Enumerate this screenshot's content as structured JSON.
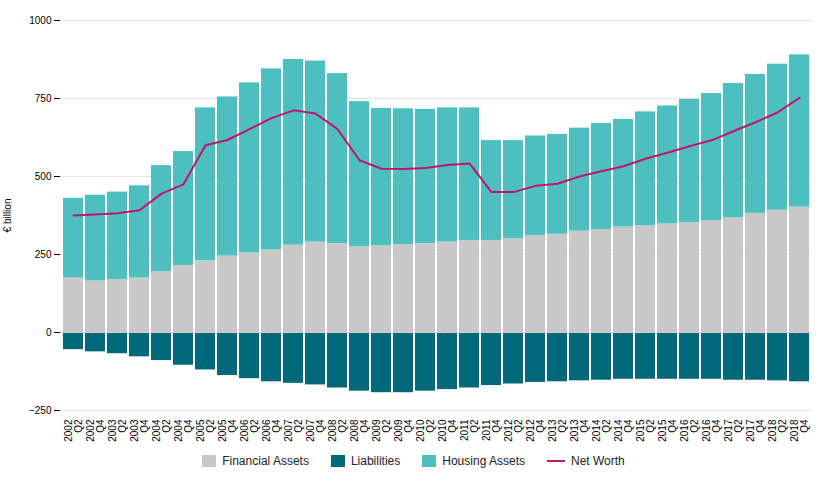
{
  "chart_data": {
    "type": "bar",
    "stacked": true,
    "grid": true,
    "legend": "bottom",
    "ylabel": "€ billion",
    "ylim": [
      -250,
      1000
    ],
    "yticks": [
      -250,
      0,
      250,
      500,
      750,
      1000
    ],
    "categories": [
      "2002\nQ2",
      "2002\nQ4",
      "2003\nQ2",
      "2003\nQ4",
      "2004\nQ2",
      "2004\nQ4",
      "2005\nQ2",
      "2005\nQ4",
      "2006\nQ2",
      "2006\nQ4",
      "2007\nQ2",
      "2007\nQ4",
      "2008\nQ2",
      "2008\nQ4",
      "2009\nQ2",
      "2009\nQ4",
      "2010\nQ2",
      "2010\nQ4",
      "2011\nQ2",
      "2011\nQ4",
      "2012\nQ2",
      "2012\nQ4",
      "2013\nQ2",
      "2013\nQ4",
      "2014\nQ2",
      "2014\nQ4",
      "2015\nQ2",
      "2015\nQ4",
      "2016\nQ2",
      "2016\nQ4",
      "2017\nQ2",
      "2017\nQ4",
      "2018\nQ2",
      "2018\nQ4"
    ],
    "series": [
      {
        "name": "Financial Assets",
        "type": "bar",
        "color": "#c8c8c8",
        "values": [
          175,
          165,
          170,
          175,
          195,
          215,
          230,
          245,
          255,
          265,
          280,
          290,
          285,
          275,
          278,
          282,
          285,
          290,
          295,
          295,
          300,
          310,
          315,
          325,
          330,
          338,
          342,
          348,
          352,
          358,
          368,
          382,
          392,
          402
        ]
      },
      {
        "name": "Liabilities",
        "type": "bar",
        "color": "#006878",
        "values": [
          -55,
          -62,
          -68,
          -78,
          -90,
          -105,
          -120,
          -138,
          -148,
          -158,
          -163,
          -168,
          -178,
          -188,
          -193,
          -193,
          -188,
          -183,
          -178,
          -170,
          -165,
          -160,
          -158,
          -155,
          -153,
          -150,
          -150,
          -150,
          -150,
          -150,
          -153,
          -153,
          -155,
          -158
        ]
      },
      {
        "name": "Housing Assets",
        "type": "bar",
        "color": "#4dbfbf",
        "values": [
          255,
          275,
          280,
          295,
          340,
          365,
          490,
          510,
          545,
          580,
          595,
          580,
          545,
          465,
          440,
          435,
          430,
          430,
          425,
          320,
          315,
          320,
          320,
          330,
          340,
          345,
          365,
          378,
          395,
          408,
          430,
          445,
          468,
          488
        ]
      },
      {
        "name": "Net Worth",
        "type": "line",
        "color": "#c0156a",
        "values": [
          375,
          378,
          382,
          392,
          445,
          475,
          600,
          617,
          652,
          687,
          712,
          702,
          652,
          552,
          525,
          524,
          527,
          537,
          542,
          450,
          450,
          470,
          477,
          500,
          517,
          533,
          557,
          576,
          597,
          616,
          645,
          674,
          705,
          752
        ]
      }
    ]
  }
}
